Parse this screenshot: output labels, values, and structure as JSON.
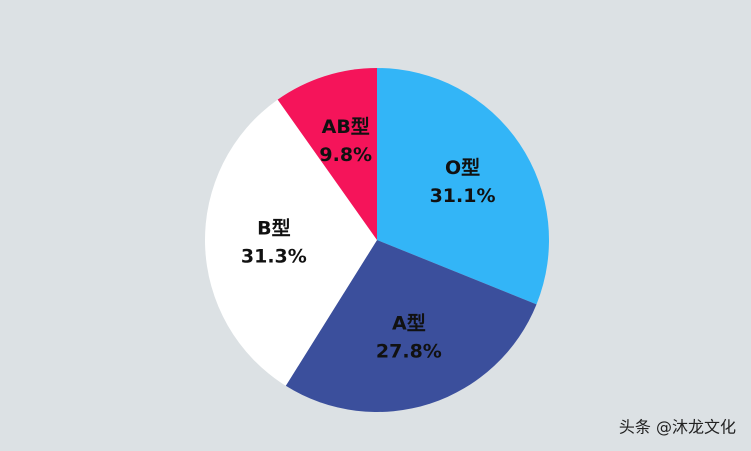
{
  "chart_data": {
    "type": "pie",
    "categories": [
      "O型",
      "A型",
      "B型",
      "AB型"
    ],
    "values": [
      31.1,
      27.8,
      31.3,
      9.8
    ],
    "value_labels": [
      "31.1%",
      "27.8%",
      "31.3%",
      "9.8%"
    ],
    "colors": [
      "#33b5f7",
      "#3b4f9c",
      "#ffffff",
      "#f5145a"
    ],
    "watermark": "头条 @沐龙文化"
  }
}
